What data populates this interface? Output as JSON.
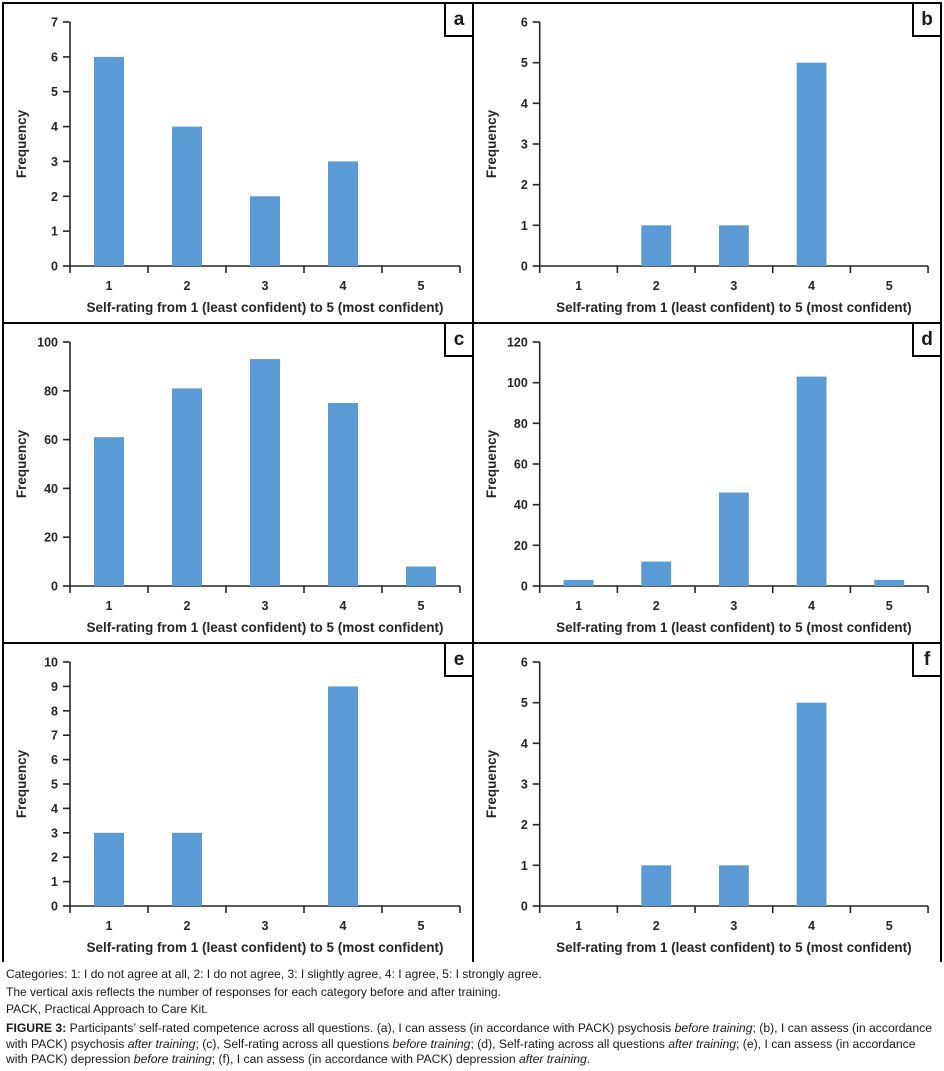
{
  "colors": {
    "bar": "#5B9BD5",
    "border": "#000000",
    "text": "#262626"
  },
  "chart_data": [
    {
      "panel": "a",
      "type": "bar",
      "categories": [
        "1",
        "2",
        "3",
        "4",
        "5"
      ],
      "values": [
        6,
        4,
        2,
        3,
        0
      ],
      "title": "",
      "xlabel": "Self-rating from 1 (least confident) to 5 (most confident)",
      "ylabel": "Frequency",
      "ylim": [
        0,
        7
      ],
      "ytick_step": 1,
      "grid": false,
      "legend": "none"
    },
    {
      "panel": "b",
      "type": "bar",
      "categories": [
        "1",
        "2",
        "3",
        "4",
        "5"
      ],
      "values": [
        0,
        1,
        1,
        5,
        0
      ],
      "title": "",
      "xlabel": "Self-rating from 1 (least confident) to 5 (most confident)",
      "ylabel": "Frequency",
      "ylim": [
        0,
        6
      ],
      "ytick_step": 1,
      "grid": false,
      "legend": "none"
    },
    {
      "panel": "c",
      "type": "bar",
      "categories": [
        "1",
        "2",
        "3",
        "4",
        "5"
      ],
      "values": [
        61,
        81,
        93,
        75,
        8
      ],
      "title": "",
      "xlabel": "Self-rating from 1 (least confident) to 5 (most confident)",
      "ylabel": "Frequency",
      "ylim": [
        0,
        100
      ],
      "ytick_step": 20,
      "grid": false,
      "legend": "none"
    },
    {
      "panel": "d",
      "type": "bar",
      "categories": [
        "1",
        "2",
        "3",
        "4",
        "5"
      ],
      "values": [
        3,
        12,
        46,
        103,
        3
      ],
      "title": "",
      "xlabel": "Self-rating from 1 (least confident) to 5 (most confident)",
      "ylabel": "Frequency",
      "ylim": [
        0,
        120
      ],
      "ytick_step": 20,
      "grid": false,
      "legend": "none"
    },
    {
      "panel": "e",
      "type": "bar",
      "categories": [
        "1",
        "2",
        "3",
        "4",
        "5"
      ],
      "values": [
        3,
        3,
        0,
        9,
        0
      ],
      "title": "",
      "xlabel": "Self-rating from 1 (least confident) to 5 (most confident)",
      "ylabel": "Frequency",
      "ylim": [
        0,
        10
      ],
      "ytick_step": 1,
      "grid": false,
      "legend": "none"
    },
    {
      "panel": "f",
      "type": "bar",
      "categories": [
        "1",
        "2",
        "3",
        "4",
        "5"
      ],
      "values": [
        0,
        1,
        1,
        5,
        0
      ],
      "title": "",
      "xlabel": "Self-rating from 1 (least confident) to 5 (most confident)",
      "ylabel": "Frequency",
      "ylim": [
        0,
        6
      ],
      "ytick_step": 1,
      "grid": false,
      "legend": "none"
    }
  ],
  "notes": {
    "categories": "Categories: 1: I do not agree at all, 2: I do not agree, 3: I slightly agree, 4: I agree, 5: I strongly agree.",
    "vertical_axis": "The vertical axis reflects the number of responses for each category before and after training.",
    "pack": "PACK, Practical Approach to Care Kit."
  },
  "figure_caption": {
    "runs": [
      {
        "t": "FIGURE 3: ",
        "b": true
      },
      {
        "t": "Participants’ self-rated competence across all questions. (a), I can assess (in accordance with PACK) psychosis "
      },
      {
        "t": "before training",
        "i": true
      },
      {
        "t": "; (b), I can assess (in accordance with PACK) psychosis "
      },
      {
        "t": "after training",
        "i": true
      },
      {
        "t": "; (c), Self-rating across all questions "
      },
      {
        "t": "before training",
        "i": true
      },
      {
        "t": "; (d), Self-rating across all questions "
      },
      {
        "t": "after training",
        "i": true
      },
      {
        "t": "; (e), I can assess (in accordance with PACK) depression "
      },
      {
        "t": "before training",
        "i": true
      },
      {
        "t": "; (f), I can assess (in accordance with PACK) depression "
      },
      {
        "t": "after training",
        "i": true
      },
      {
        "t": "."
      }
    ]
  }
}
